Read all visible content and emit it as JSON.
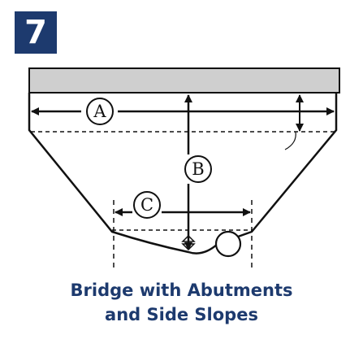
{
  "badge": {
    "number": "7"
  },
  "labels": {
    "a": "A",
    "b": "B",
    "c": "C"
  },
  "caption": {
    "line1": "Bridge with Abutments",
    "line2": "and Side Slopes"
  },
  "colors": {
    "badge_bg": "#1d3a6e",
    "caption_text": "#1d3a6e",
    "deck_fill": "#cfcfcf",
    "line": "#111111"
  }
}
